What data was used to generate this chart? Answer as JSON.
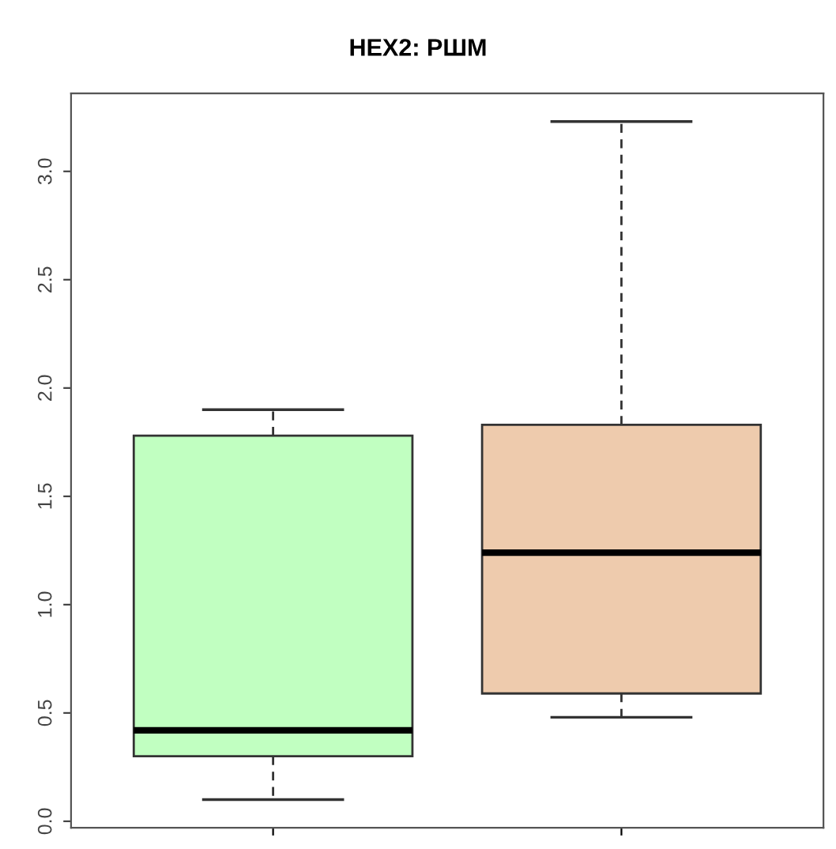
{
  "chart_data": {
    "type": "box",
    "title": "HEX2: РШМ",
    "categories": [
      null,
      null
    ],
    "colors": [
      "#c1ffc1",
      "#eecbad"
    ],
    "boxes": [
      {
        "low": 0.1,
        "q1": 0.3,
        "median": 0.42,
        "q3": 1.78,
        "high": 1.9
      },
      {
        "low": 0.48,
        "q1": 0.59,
        "median": 1.24,
        "q3": 1.83,
        "high": 3.23
      }
    ],
    "ylim": [
      -0.03,
      3.36
    ],
    "yticks": [
      {
        "value": 0,
        "label": "0.0"
      },
      0.5,
      {
        "value": 1,
        "label": "1.0"
      },
      1.5,
      {
        "value": 2,
        "label": "2.0"
      },
      2.5,
      {
        "value": 3,
        "label": "3.0"
      }
    ],
    "tick_labels": "y",
    "grid": false
  }
}
